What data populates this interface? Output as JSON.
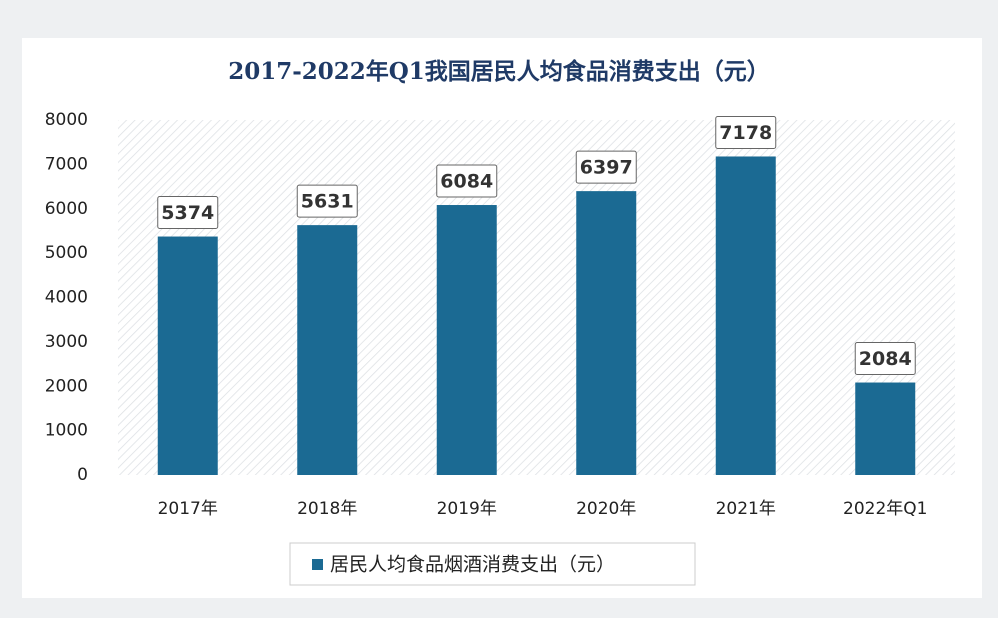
{
  "chart_data": {
    "type": "bar",
    "title": "2017-2022年Q1我国居民人均食品消费支出（元）",
    "categories": [
      "2017年",
      "2018年",
      "2019年",
      "2020年",
      "2021年",
      "2022年Q1"
    ],
    "series": [
      {
        "name": "居民人均食品烟酒消费支出（元）",
        "color": "#1b6a93",
        "values": [
          5374,
          5631,
          6084,
          6397,
          7178,
          2084
        ]
      }
    ],
    "ylim": [
      0,
      8000
    ],
    "yticks": [
      0,
      1000,
      2000,
      3000,
      4000,
      5000,
      6000,
      7000,
      8000
    ],
    "grid": false,
    "legend": "bottom"
  }
}
